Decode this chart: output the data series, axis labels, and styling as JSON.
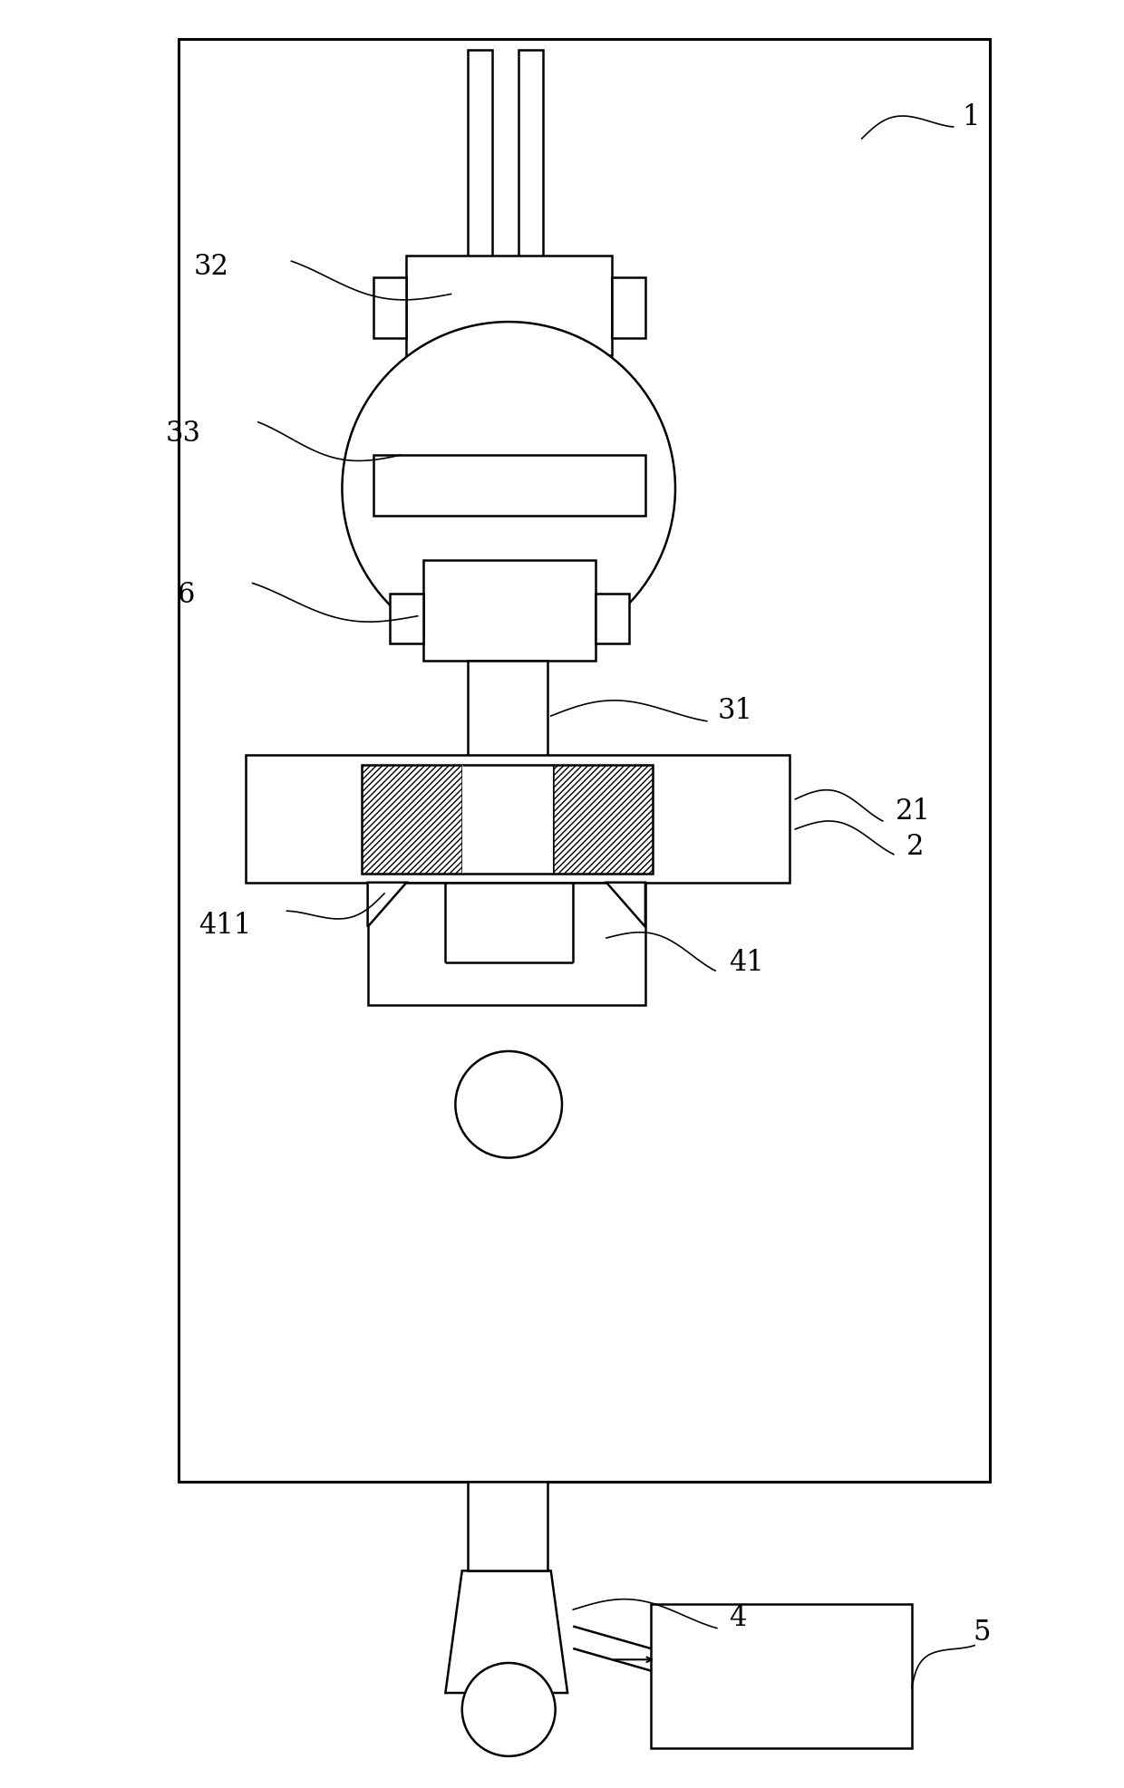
{
  "bg_color": "#ffffff",
  "line_color": "#000000",
  "lw": 1.8,
  "fig_width": 12.4,
  "fig_height": 19.74
}
